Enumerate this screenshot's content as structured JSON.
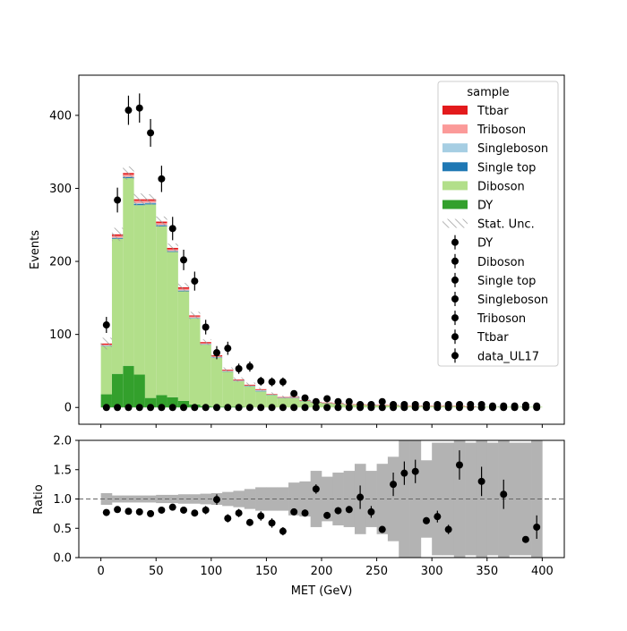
{
  "chart_data": [
    {
      "type": "stacked-histogram-with-data",
      "xlabel": "",
      "ylabel": "Events",
      "xlim": [
        -20,
        420
      ],
      "ylim": [
        -23,
        455
      ],
      "yticks": [
        0,
        100,
        200,
        300,
        400
      ],
      "bin_width": 10,
      "bin_edges_start": 0,
      "legend": {
        "title": "sample",
        "placement": "top-right",
        "entries": [
          {
            "label": "Ttbar",
            "kind": "patch",
            "color": "#e31a1c"
          },
          {
            "label": "Triboson",
            "kind": "patch",
            "color": "#fb9a99"
          },
          {
            "label": "Singleboson",
            "kind": "patch",
            "color": "#a6cee3"
          },
          {
            "label": "Single top",
            "kind": "patch",
            "color": "#1f78b4"
          },
          {
            "label": "Diboson",
            "kind": "patch",
            "color": "#b2df8a"
          },
          {
            "label": "DY",
            "kind": "patch",
            "color": "#33a02c"
          },
          {
            "label": "Stat. Unc.",
            "kind": "hatch",
            "color": "#999999"
          },
          {
            "label": "DY",
            "kind": "marker",
            "color": "#000000"
          },
          {
            "label": "Diboson",
            "kind": "marker",
            "color": "#000000"
          },
          {
            "label": "Single top",
            "kind": "marker",
            "color": "#000000"
          },
          {
            "label": "Singleboson",
            "kind": "marker",
            "color": "#000000"
          },
          {
            "label": "Triboson",
            "kind": "marker",
            "color": "#000000"
          },
          {
            "label": "Ttbar",
            "kind": "marker",
            "color": "#000000"
          },
          {
            "label": "data_UL17",
            "kind": "marker",
            "color": "#000000"
          }
        ]
      },
      "stack_series": [
        {
          "name": "DY",
          "color": "#33a02c",
          "values": [
            18,
            46,
            57,
            45,
            13,
            17,
            14,
            9,
            4,
            2,
            1,
            1,
            1,
            0,
            0,
            0,
            0,
            0,
            0,
            0,
            0,
            0,
            0,
            0,
            0,
            0,
            0,
            0,
            0,
            0,
            0,
            0,
            0,
            0,
            0,
            0,
            0,
            0,
            0,
            0
          ]
        },
        {
          "name": "Diboson",
          "color": "#b2df8a",
          "values": [
            66,
            185,
            257,
            232,
            265,
            231,
            199,
            150,
            118,
            84,
            67,
            48,
            35,
            29,
            22,
            17,
            13,
            13,
            9,
            7,
            6,
            5,
            4,
            4,
            3,
            3,
            3,
            2,
            2,
            2,
            2,
            2,
            2,
            1,
            1,
            1,
            1,
            1,
            1,
            1
          ]
        },
        {
          "name": "Single top",
          "color": "#1f78b4",
          "values": [
            0.5,
            1,
            1.5,
            1.5,
            1.5,
            1.5,
            1,
            1,
            0.5,
            0.5,
            0.5,
            0.5,
            0.3,
            0.3,
            0.5,
            0.3,
            0.2,
            0.2,
            0.1,
            0.1,
            0.1,
            0.1,
            0,
            0,
            0,
            0,
            0,
            0,
            0,
            0,
            0,
            0,
            0,
            0,
            0,
            0,
            0,
            0,
            0,
            0
          ]
        },
        {
          "name": "Singleboson",
          "color": "#a6cee3",
          "values": [
            0.5,
            0.5,
            0.5,
            1.5,
            1,
            0.5,
            0.5,
            0.5,
            0.5,
            0.5,
            0.5,
            0.3,
            0.3,
            0.3,
            1,
            0.3,
            0.2,
            0.2,
            0.1,
            0.1,
            0.1,
            0.1,
            0,
            0,
            0,
            0,
            0,
            0,
            0,
            0,
            0,
            0,
            0,
            0,
            0,
            0,
            0,
            0,
            0,
            0
          ]
        },
        {
          "name": "Triboson",
          "color": "#fb9a99",
          "values": [
            1,
            2.5,
            3,
            3,
            2.5,
            2.5,
            2,
            2,
            1.5,
            1,
            1,
            1,
            0.5,
            0.5,
            0.5,
            0.5,
            0.3,
            0.3,
            0.2,
            0.2,
            0.2,
            0.1,
            0.1,
            0.1,
            0.1,
            0.1,
            0,
            0,
            0,
            0,
            0,
            0,
            0,
            0,
            0,
            0,
            0,
            0,
            0,
            0
          ]
        },
        {
          "name": "Ttbar",
          "color": "#e31a1c",
          "values": [
            1.5,
            2,
            2,
            2,
            2,
            2,
            2,
            2,
            1.5,
            1.5,
            1.5,
            1,
            1,
            1,
            1,
            0.5,
            0.5,
            0.5,
            0.5,
            0.3,
            0.3,
            0.3,
            0.2,
            0.2,
            0.2,
            0.2,
            0.1,
            0.1,
            0.1,
            0.1,
            0.1,
            0.1,
            0.1,
            0.1,
            0,
            0,
            0,
            0,
            0,
            0
          ]
        }
      ],
      "stat_unc_halfwidth": [
        8,
        9,
        9,
        8,
        7,
        7,
        6,
        6,
        5,
        4,
        4,
        3,
        3,
        3,
        2,
        2,
        2,
        2,
        1,
        1,
        1,
        1,
        1,
        1,
        1,
        1,
        1,
        1,
        1,
        1,
        1,
        1,
        1,
        1,
        1,
        1,
        1,
        1,
        1,
        1
      ],
      "data_points": {
        "x": [
          5,
          15,
          25,
          35,
          45,
          55,
          65,
          75,
          85,
          95,
          105,
          115,
          125,
          135,
          145,
          155,
          165,
          175,
          185,
          195,
          205,
          215,
          225,
          235,
          245,
          255,
          265,
          275,
          285,
          295,
          305,
          315,
          325,
          335,
          345,
          355,
          365,
          375,
          385,
          395
        ],
        "y": [
          113,
          284,
          407,
          410,
          376,
          313,
          245,
          202,
          173,
          110,
          75,
          81,
          53,
          56,
          36,
          35,
          35,
          19,
          13,
          8,
          12,
          8,
          8,
          4,
          4,
          8,
          4,
          4,
          4,
          4,
          4,
          4,
          4,
          4,
          4,
          2,
          2,
          2,
          3,
          2
        ],
        "yerr": [
          11,
          17,
          20,
          20,
          19,
          18,
          16,
          14,
          13,
          10,
          9,
          9,
          7,
          7,
          6,
          6,
          6,
          4,
          4,
          3,
          3,
          3,
          3,
          2,
          2,
          3,
          2,
          2,
          2,
          2,
          2,
          2,
          2,
          2,
          2,
          1.5,
          1.5,
          1.5,
          1.7,
          1.5
        ]
      },
      "zero_markers_x": [
        5,
        15,
        25,
        35,
        45,
        55,
        65,
        75,
        85,
        95,
        105,
        115,
        125,
        135,
        145,
        155,
        165,
        175,
        185,
        195,
        205,
        215,
        225,
        235,
        245,
        255,
        265,
        275,
        285,
        295,
        305,
        315,
        325,
        335,
        345,
        355,
        365,
        375,
        385,
        395
      ]
    },
    {
      "type": "ratio",
      "xlabel": "MET (GeV)",
      "ylabel": "Ratio",
      "xlim": [
        -20,
        420
      ],
      "ylim": [
        0.0,
        2.0
      ],
      "xticks": [
        0,
        50,
        100,
        150,
        200,
        250,
        300,
        350,
        400
      ],
      "yticks": [
        0.0,
        0.5,
        1.0,
        1.5,
        2.0
      ],
      "yticklabels": [
        "0.0",
        "0.5",
        "1.0",
        "1.5",
        "2.0"
      ],
      "reference_line": 1.0,
      "unc_band_halfwidth": [
        0.1,
        0.06,
        0.06,
        0.06,
        0.06,
        0.07,
        0.07,
        0.08,
        0.08,
        0.09,
        0.1,
        0.12,
        0.14,
        0.17,
        0.2,
        0.2,
        0.2,
        0.28,
        0.3,
        0.48,
        0.38,
        0.45,
        0.48,
        0.6,
        0.48,
        0.6,
        0.72,
        1.0,
        1.0,
        0.66,
        0.96,
        0.96,
        1.0,
        0.96,
        1.0,
        0.96,
        1.0,
        0.96,
        0.96,
        1.0
      ],
      "points": {
        "x": [
          5,
          15,
          25,
          35,
          45,
          55,
          65,
          75,
          85,
          95,
          105,
          115,
          125,
          135,
          145,
          155,
          165,
          175,
          185,
          195,
          205,
          215,
          225,
          235,
          245,
          255,
          265,
          275,
          285,
          295,
          305,
          315,
          325,
          335,
          345,
          355,
          365,
          375,
          385,
          395
        ],
        "y": [
          0.77,
          0.82,
          0.79,
          0.78,
          0.75,
          0.81,
          0.86,
          0.81,
          0.76,
          0.81,
          0.99,
          0.67,
          0.76,
          0.6,
          0.71,
          0.59,
          0.45,
          0.78,
          0.76,
          1.17,
          0.72,
          0.8,
          0.82,
          1.03,
          0.78,
          0.48,
          1.25,
          1.44,
          1.47,
          0.63,
          0.7,
          0.48,
          1.58,
          null,
          1.3,
          null,
          1.08,
          null,
          0.31,
          0.52
        ],
        "yerr": [
          0.05,
          0.05,
          0.04,
          0.04,
          0.04,
          0.05,
          0.05,
          0.05,
          0.05,
          0.07,
          0.09,
          0.07,
          0.07,
          0.06,
          0.08,
          0.08,
          0.07,
          0.06,
          0.06,
          0.08,
          0.06,
          0.06,
          0.06,
          0.2,
          0.1,
          0.05,
          0.2,
          0.2,
          0.2,
          0.06,
          0.1,
          0.08,
          0.25,
          0,
          0.25,
          0,
          0.25,
          0,
          0.05,
          0.2
        ]
      }
    }
  ]
}
